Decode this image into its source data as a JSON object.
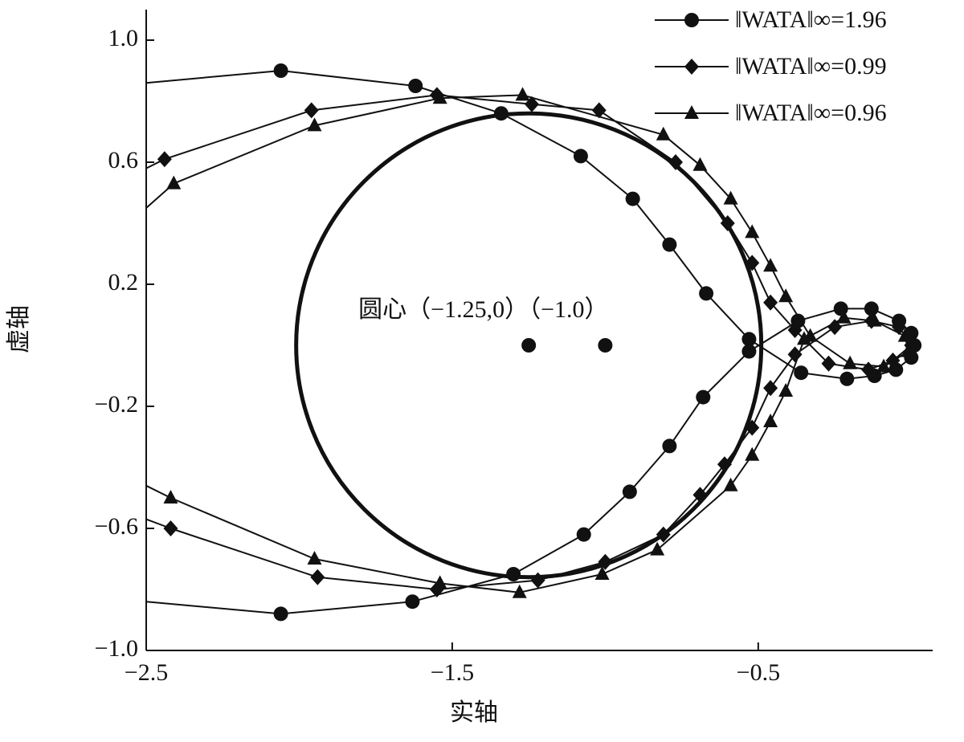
{
  "chart_data": {
    "type": "line",
    "xlabel": "实轴",
    "ylabel": "虚轴",
    "annotation": "圆心（−1.25,0）（−1.0）",
    "xlim": [
      -2.5,
      0.07
    ],
    "ylim": [
      -1.0,
      1.1
    ],
    "xticks": [
      {
        "value": -2.5,
        "label": "−2.5"
      },
      {
        "value": -1.5,
        "label": "−1.5"
      },
      {
        "value": -0.5,
        "label": "−0.5"
      }
    ],
    "yticks": [
      {
        "value": -1.0,
        "label": "−1.0"
      },
      {
        "value": -0.6,
        "label": "−0.6"
      },
      {
        "value": -0.2,
        "label": "−0.2"
      },
      0.2,
      0.6,
      {
        "value": 1.0,
        "label": "1.0"
      }
    ],
    "circle": {
      "center_x": -1.25,
      "center_y": 0,
      "radius": 0.76,
      "color": "#111111"
    },
    "points": {
      "x": [
        -1.25,
        -1.0
      ],
      "y": [
        0,
        0
      ]
    },
    "legend": "upper right",
    "series": [
      {
        "name": "‖WATA‖∞=1.96",
        "color": "#111111",
        "marker": "circle",
        "x": [
          -2.5,
          -2.06,
          -1.62,
          -1.34,
          -1.08,
          -0.91,
          -0.79,
          -0.67,
          -0.53,
          -0.36,
          -0.21,
          -0.12,
          -0.05,
          0.0,
          0.01,
          0.0,
          -0.04,
          -0.13,
          -0.23,
          -0.37,
          -0.53,
          -0.68,
          -0.79,
          -0.92,
          -1.07,
          -1.3,
          -1.63,
          -2.06,
          -2.5
        ],
        "y": [
          0.86,
          0.9,
          0.85,
          0.76,
          0.62,
          0.48,
          0.33,
          0.17,
          0.02,
          -0.09,
          -0.11,
          -0.1,
          -0.08,
          -0.04,
          0.0,
          0.04,
          0.08,
          0.12,
          0.12,
          0.08,
          -0.02,
          -0.17,
          -0.33,
          -0.48,
          -0.62,
          -0.75,
          -0.84,
          -0.88,
          -0.84
        ]
      },
      {
        "name": "‖WATA‖∞=0.99",
        "color": "#111111",
        "marker": "diamond",
        "x": [
          -2.5,
          -2.44,
          -1.96,
          -1.55,
          -1.24,
          -1.02,
          -0.77,
          -0.6,
          -0.52,
          -0.46,
          -0.38,
          -0.27,
          -0.14,
          -0.06,
          0.0,
          -0.04,
          -0.13,
          -0.25,
          -0.38,
          -0.46,
          -0.52,
          -0.61,
          -0.69,
          -0.81,
          -1.0,
          -1.22,
          -1.55,
          -1.94,
          -2.42,
          -2.5
        ],
        "y": [
          0.58,
          0.61,
          0.77,
          0.82,
          0.79,
          0.77,
          0.6,
          0.4,
          0.27,
          0.14,
          0.05,
          -0.06,
          -0.08,
          -0.05,
          0.0,
          0.06,
          0.08,
          0.06,
          -0.03,
          -0.14,
          -0.27,
          -0.39,
          -0.49,
          -0.62,
          -0.71,
          -0.77,
          -0.8,
          -0.76,
          -0.6,
          -0.57
        ]
      },
      {
        "name": "‖WATA‖∞=0.96",
        "color": "#111111",
        "marker": "triangle",
        "x": [
          -2.5,
          -2.41,
          -1.95,
          -1.54,
          -1.27,
          -0.81,
          -0.69,
          -0.59,
          -0.52,
          -0.46,
          -0.41,
          -0.33,
          -0.2,
          -0.09,
          -0.01,
          -0.02,
          -0.12,
          -0.22,
          -0.35,
          -0.41,
          -0.46,
          -0.52,
          -0.59,
          -0.83,
          -1.01,
          -1.28,
          -1.54,
          -1.95,
          -2.42,
          -2.5
        ],
        "y": [
          0.45,
          0.53,
          0.72,
          0.81,
          0.82,
          0.69,
          0.59,
          0.48,
          0.37,
          0.26,
          0.16,
          0.03,
          -0.06,
          -0.07,
          -0.02,
          0.03,
          0.08,
          0.09,
          0.02,
          -0.15,
          -0.25,
          -0.36,
          -0.46,
          -0.67,
          -0.75,
          -0.81,
          -0.78,
          -0.7,
          -0.5,
          -0.46
        ]
      }
    ]
  }
}
